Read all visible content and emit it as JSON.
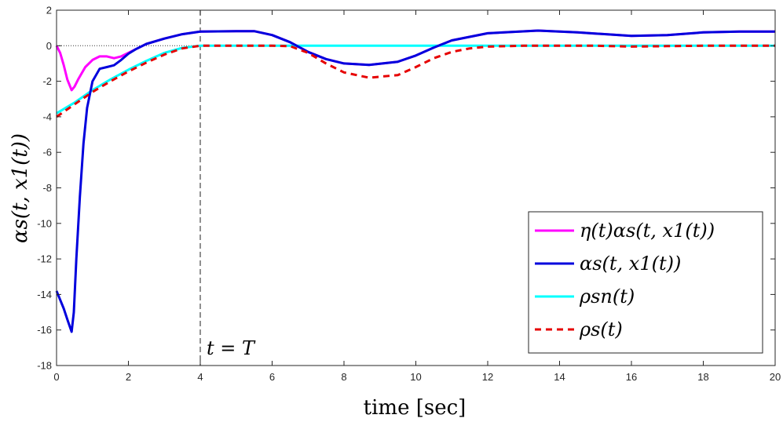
{
  "chart_data": {
    "type": "line",
    "xlabel": "time [sec]",
    "ylabel": "αs(t, x1(t))",
    "xlim": [
      0,
      20
    ],
    "ylim": [
      -18,
      2
    ],
    "xticks": [
      0,
      2,
      4,
      6,
      8,
      10,
      12,
      14,
      16,
      18,
      20
    ],
    "yticks": [
      2,
      0,
      -2,
      -4,
      -6,
      -8,
      -10,
      -12,
      -14,
      -16,
      -18
    ],
    "xtick_labels": [
      "0",
      "2",
      "4",
      "6",
      "8",
      "10",
      "12",
      "14",
      "16",
      "18",
      "20"
    ],
    "ytick_labels": [
      "2",
      "0",
      "-2",
      "-4",
      "-6",
      "-8",
      "-10",
      "-12",
      "-14",
      "-16",
      "-18"
    ],
    "annotation": {
      "text": "t = T",
      "x": 4
    },
    "vline": {
      "x": 4,
      "style": "dashed",
      "color": "#555555"
    },
    "hline": {
      "y": 0,
      "style": "dotted",
      "color": "#333333"
    },
    "legend_position": "bottom-right",
    "series": [
      {
        "name": "η(t)αs(t, x1(t))",
        "color": "#ff00ff",
        "dash": "",
        "x": [
          0,
          0.1,
          0.2,
          0.3,
          0.42,
          0.5,
          0.6,
          0.8,
          1.0,
          1.2,
          1.4,
          1.6,
          1.8,
          2.0,
          2.2,
          2.5,
          3.0,
          3.5,
          4.0,
          5.0,
          5.5,
          6.0,
          6.5,
          7.0,
          7.5,
          8.0,
          8.7,
          9.5,
          10.0,
          10.5,
          11.0,
          12.0,
          13.4,
          14.5,
          16.0,
          17.0,
          18.0,
          19.0,
          20.0
        ],
        "y": [
          0,
          -0.4,
          -1.1,
          -1.9,
          -2.5,
          -2.3,
          -1.9,
          -1.2,
          -0.8,
          -0.6,
          -0.6,
          -0.7,
          -0.6,
          -0.4,
          -0.2,
          0.1,
          0.4,
          0.65,
          0.8,
          0.82,
          0.82,
          0.6,
          0.2,
          -0.35,
          -0.75,
          -1.0,
          -1.08,
          -0.9,
          -0.55,
          -0.1,
          0.3,
          0.7,
          0.85,
          0.75,
          0.55,
          0.6,
          0.75,
          0.8,
          0.8
        ]
      },
      {
        "name": "αs(t, x1(t))",
        "color": "#0000dd",
        "dash": "",
        "x": [
          0,
          0.1,
          0.2,
          0.3,
          0.42,
          0.48,
          0.55,
          0.65,
          0.75,
          0.85,
          1.0,
          1.2,
          1.4,
          1.6,
          1.8,
          2.0,
          2.2,
          2.5,
          3.0,
          3.5,
          4.0,
          5.0,
          5.5,
          6.0,
          6.5,
          7.0,
          7.5,
          8.0,
          8.7,
          9.5,
          10.0,
          10.5,
          11.0,
          12.0,
          13.4,
          14.5,
          16.0,
          17.0,
          18.0,
          19.0,
          20.0
        ],
        "y": [
          -13.8,
          -14.3,
          -14.8,
          -15.4,
          -16.1,
          -15.0,
          -12.0,
          -8.5,
          -5.5,
          -3.5,
          -2.0,
          -1.3,
          -1.2,
          -1.1,
          -0.8,
          -0.45,
          -0.2,
          0.1,
          0.4,
          0.65,
          0.8,
          0.82,
          0.82,
          0.6,
          0.2,
          -0.35,
          -0.75,
          -1.0,
          -1.08,
          -0.9,
          -0.55,
          -0.1,
          0.3,
          0.7,
          0.85,
          0.75,
          0.55,
          0.6,
          0.75,
          0.8,
          0.8
        ]
      },
      {
        "name": "ρsn(t)",
        "color": "#00ffff",
        "dash": "",
        "x": [
          0,
          0.5,
          1.0,
          1.5,
          2.0,
          2.5,
          3.0,
          3.5,
          4.0,
          20.0
        ],
        "y": [
          -3.8,
          -3.2,
          -2.5,
          -1.9,
          -1.35,
          -0.85,
          -0.4,
          -0.12,
          0,
          0
        ]
      },
      {
        "name": "ρs(t)",
        "color": "#e60000",
        "dash": "8,6",
        "x": [
          0,
          0.5,
          1.0,
          1.5,
          2.0,
          2.5,
          3.0,
          3.5,
          4.0,
          5.0,
          6.0,
          6.5,
          7.0,
          7.5,
          8.0,
          8.7,
          9.5,
          10.0,
          10.5,
          11.0,
          11.5,
          12.0,
          13.0,
          14.0,
          15.0,
          16.0,
          17.0,
          18.0,
          19.0,
          20.0
        ],
        "y": [
          -4.0,
          -3.3,
          -2.6,
          -2.0,
          -1.45,
          -0.95,
          -0.5,
          -0.15,
          0,
          0,
          0,
          -0.02,
          -0.4,
          -1.0,
          -1.5,
          -1.8,
          -1.65,
          -1.2,
          -0.7,
          -0.35,
          -0.15,
          -0.05,
          0,
          0,
          0,
          -0.05,
          -0.02,
          0,
          0,
          0
        ]
      }
    ]
  }
}
